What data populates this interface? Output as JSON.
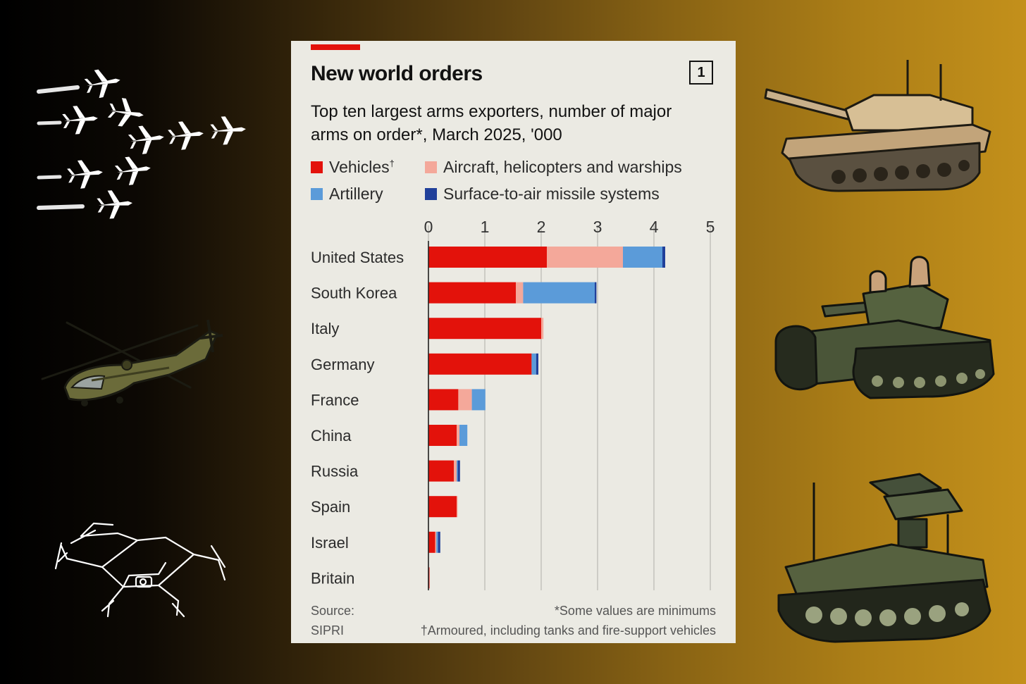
{
  "colors": {
    "vehicles": "#e3120b",
    "aircraft": "#f4a89a",
    "artillery": "#5b9bd9",
    "sam": "#21409a",
    "grid": "#b9b8b2"
  },
  "decor": {
    "left_icons": [
      "jet-formation-icon",
      "attack-helicopter-icon",
      "drone-icon"
    ],
    "right_icons": [
      "battle-tank-icon",
      "crewed-tank-icon",
      "missile-launcher-vehicle-icon"
    ]
  },
  "chart": {
    "badge": "1",
    "source_label": "Source:",
    "source_name": "SIPRI",
    "note1": "*Some values are minimums",
    "note2": "†Armoured, including tanks and fire-support vehicles",
    "vehicles_suffix": "†"
  },
  "chart_data": {
    "type": "bar",
    "orientation": "horizontal",
    "stacked": true,
    "title": "New world orders",
    "subtitle": "Top ten largest arms exporters, number of major arms on order*, March 2025, '000",
    "xlim": [
      0,
      5
    ],
    "xticks": [
      "0",
      "1",
      "2",
      "3",
      "4",
      "5"
    ],
    "categories": [
      "United States",
      "South Korea",
      "Italy",
      "Germany",
      "France",
      "China",
      "Russia",
      "Spain",
      "Israel",
      "Britain"
    ],
    "series": [
      {
        "name": "Vehicles",
        "values": [
          2.1,
          1.55,
          2.0,
          1.83,
          0.53,
          0.5,
          0.45,
          0.5,
          0.12,
          0.01
        ]
      },
      {
        "name": "Aircraft, helicopters and warships",
        "values": [
          1.35,
          0.13,
          0.04,
          0.0,
          0.24,
          0.05,
          0.05,
          0.01,
          0.02,
          0.0
        ]
      },
      {
        "name": "Artillery",
        "values": [
          0.7,
          1.27,
          0.0,
          0.08,
          0.24,
          0.14,
          0.02,
          0.0,
          0.03,
          0.0
        ]
      },
      {
        "name": "Surface-to-air missile systems",
        "values": [
          0.05,
          0.03,
          0.0,
          0.04,
          0.0,
          0.0,
          0.04,
          0.0,
          0.04,
          0.0
        ]
      }
    ],
    "grid": true
  }
}
